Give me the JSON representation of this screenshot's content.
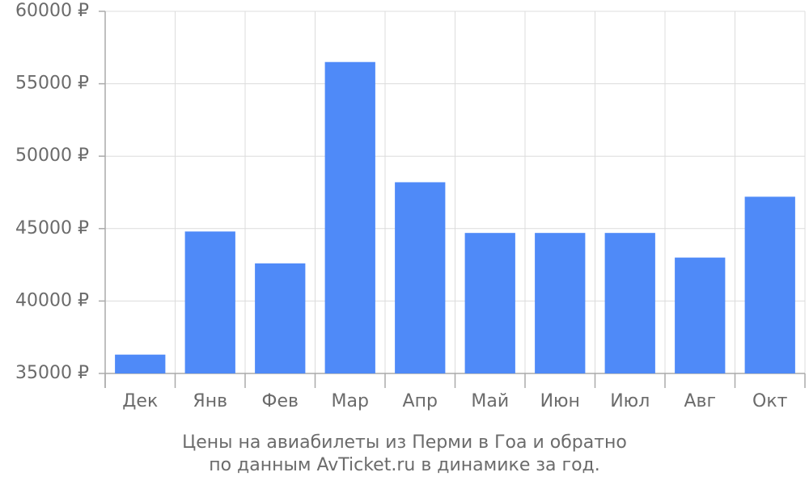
{
  "chart_data": {
    "type": "bar",
    "title": [
      "Цены на авиабилеты из Перми в Гоа и обратно",
      "по данным AvTicket.ru в динамике за год."
    ],
    "categories": [
      "Дек",
      "Янв",
      "Фев",
      "Мар",
      "Апр",
      "Май",
      "Июн",
      "Июл",
      "Авг",
      "Окт"
    ],
    "values": [
      36300,
      44800,
      42600,
      56500,
      48200,
      44700,
      44700,
      44700,
      43000,
      47200
    ],
    "color": "#4f8af8",
    "ylim": [
      35000,
      60000
    ],
    "yticks": [
      {
        "value": 35000,
        "label": "35000 ₽"
      },
      {
        "value": 40000,
        "label": "40000 ₽"
      },
      {
        "value": 45000,
        "label": "45000 ₽"
      },
      {
        "value": 50000,
        "label": "50000 ₽"
      },
      {
        "value": 55000,
        "label": "55000 ₽"
      },
      {
        "value": 60000,
        "label": "60000 ₽"
      }
    ],
    "grid": true
  }
}
